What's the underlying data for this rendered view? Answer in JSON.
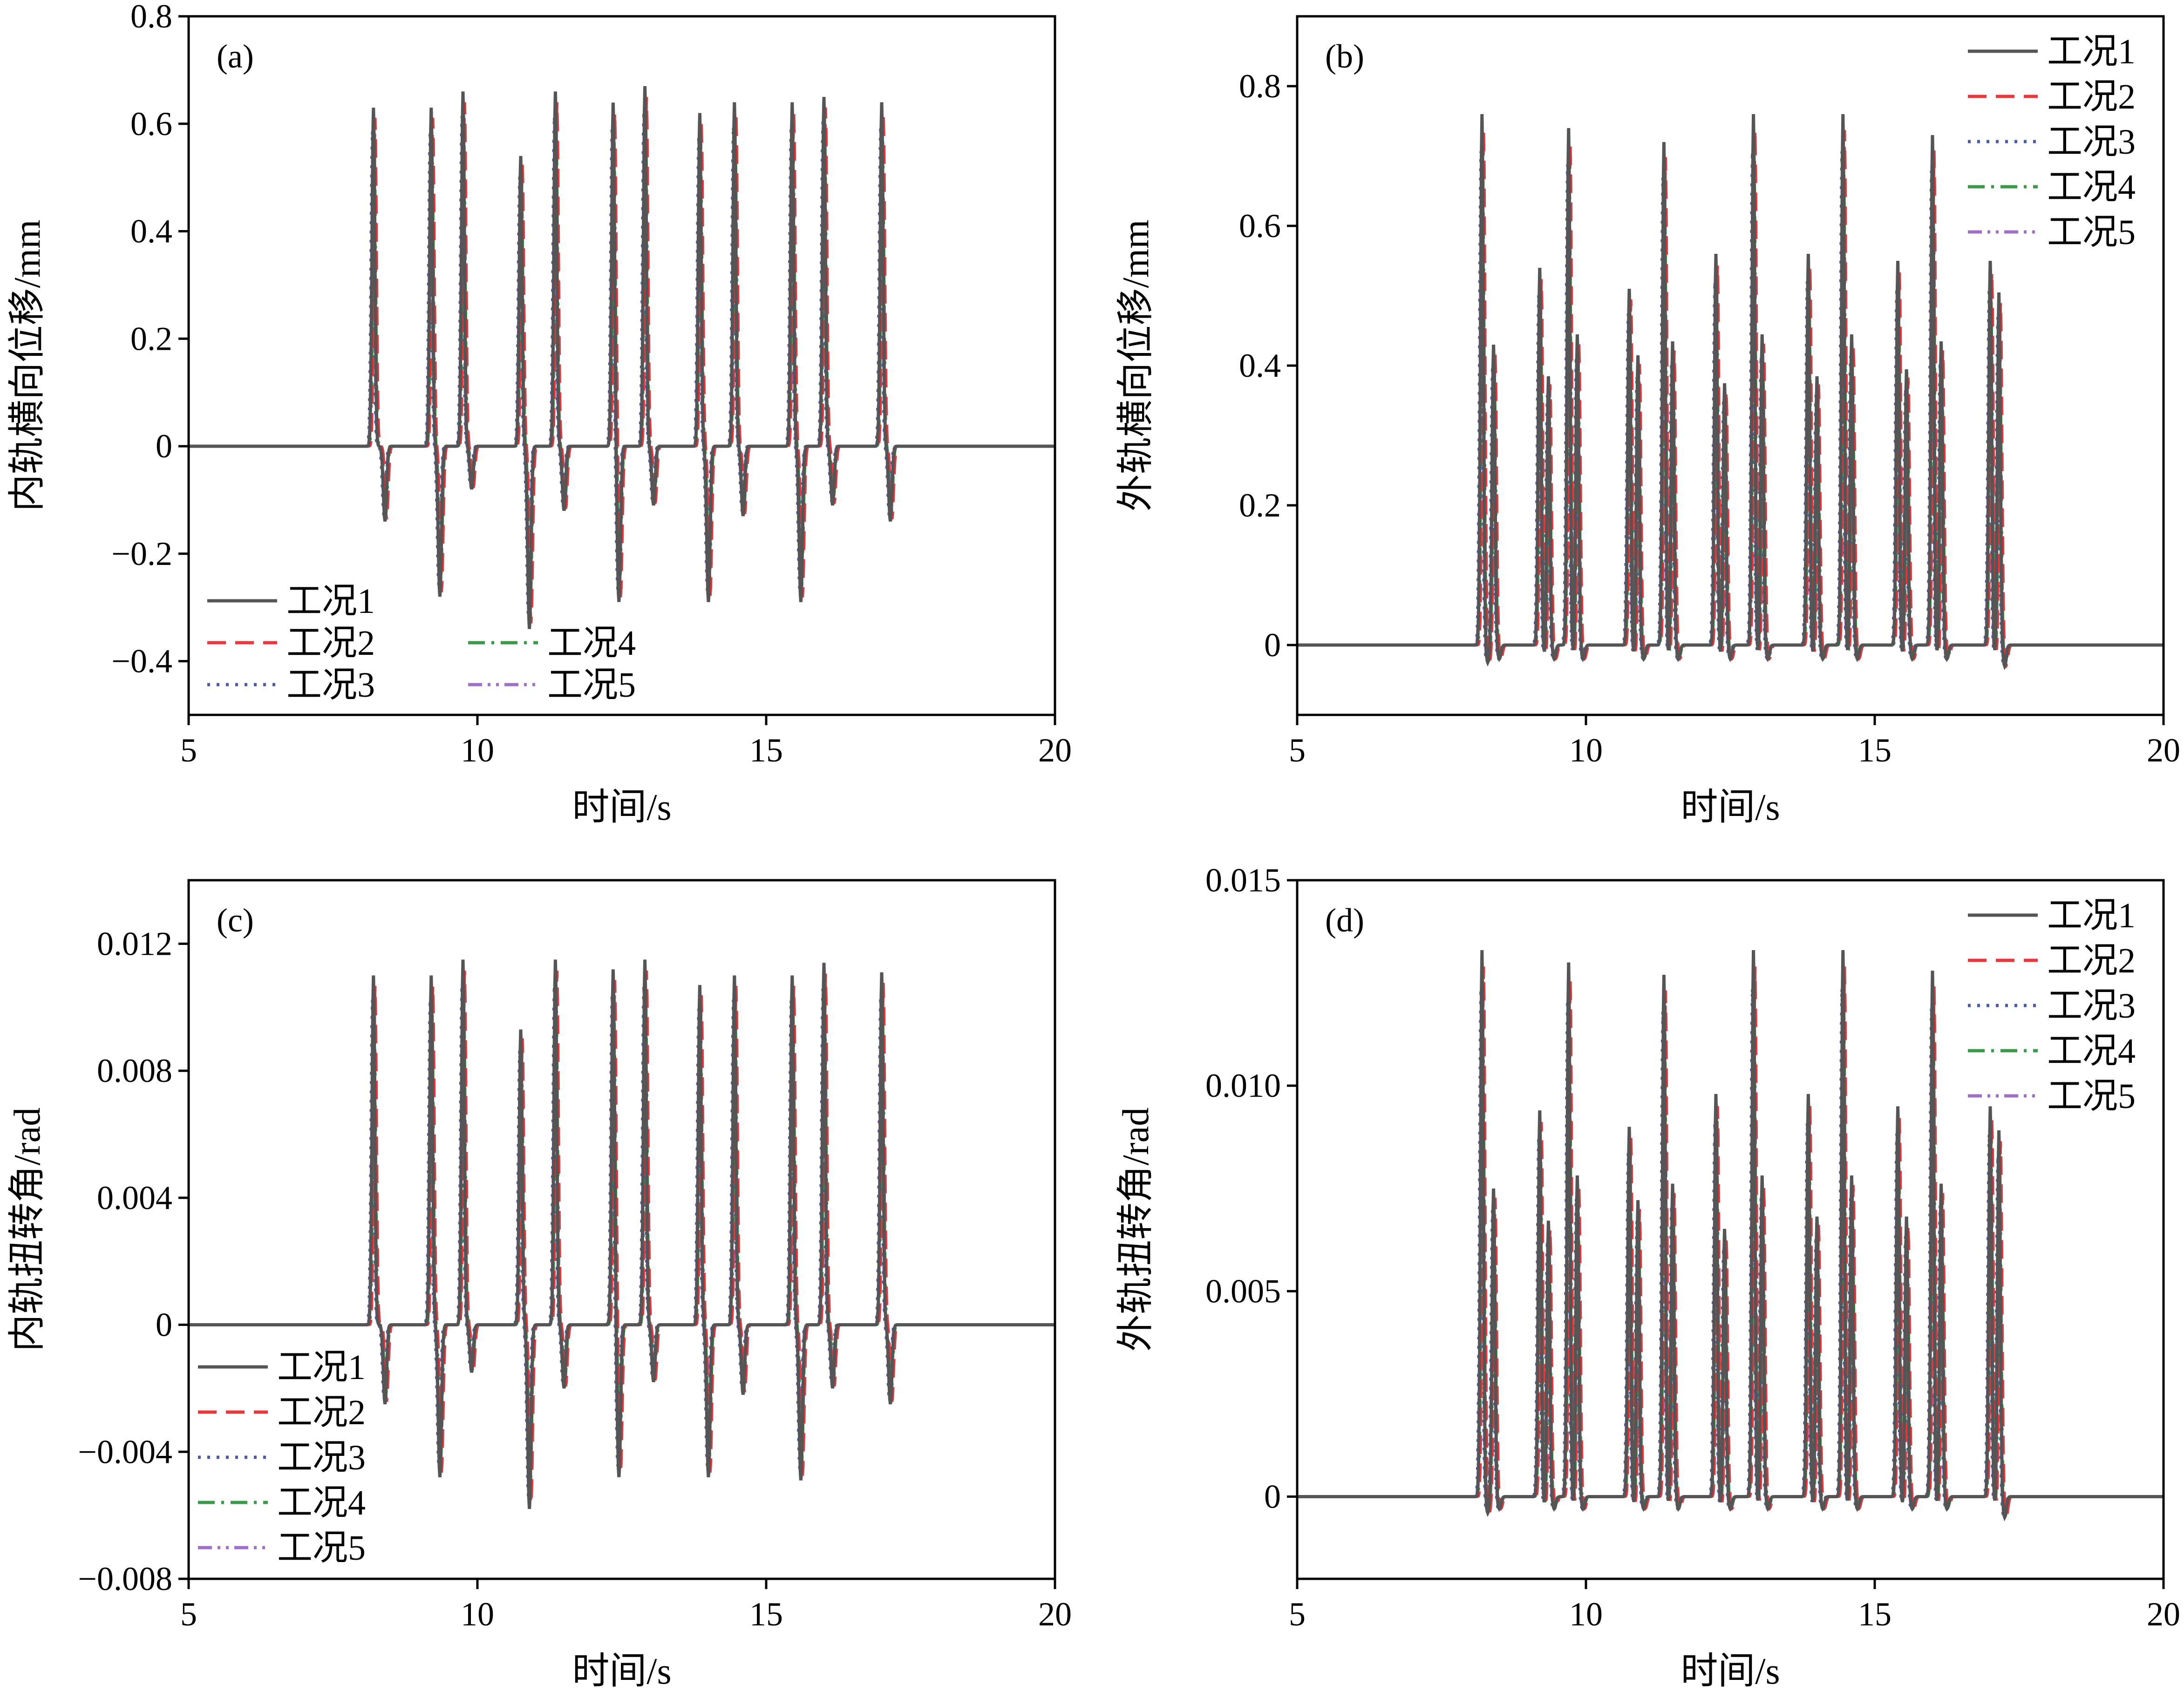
{
  "colors": {
    "工况1": "#555555",
    "工况2": "#e8383d",
    "工况3": "#4a5aa8",
    "工况4": "#3a9a4a",
    "工况5": "#a070c8"
  },
  "chart_data": [
    {
      "id": "a",
      "type": "line",
      "panel_label": "(a)",
      "xlabel": "时间/s",
      "ylabel": "内轨横向位移/mm",
      "xlim": [
        5,
        20
      ],
      "ylim": [
        -0.5,
        0.8
      ],
      "xticks": [
        5,
        10,
        15,
        20
      ],
      "xtick_labels": [
        "5",
        "10",
        "15",
        "20"
      ],
      "yticks": [
        -0.4,
        -0.2,
        0,
        0.2,
        0.4,
        0.6,
        0.8
      ],
      "ytick_labels": [
        "−0.4",
        "−0.2",
        "0",
        "0.2",
        "0.4",
        "0.6",
        "0.8"
      ],
      "legend_position": "bottom-left",
      "legend": [
        "工况1",
        "工况2",
        "工况3",
        "工况4",
        "工况5"
      ],
      "series": [
        {
          "name": "工况1",
          "style": "solid"
        },
        {
          "name": "工况2",
          "style": "dashed"
        },
        {
          "name": "工况3",
          "style": "dotted"
        },
        {
          "name": "工况4",
          "style": "dashdot"
        },
        {
          "name": "工况5",
          "style": "dashdotdot"
        }
      ],
      "peaks": [
        {
          "t": 8.2,
          "v": 0.63,
          "neg_t": 8.4,
          "neg_v": -0.14
        },
        {
          "t": 9.2,
          "v": 0.63,
          "neg_t": 9.35,
          "neg_v": -0.28
        },
        {
          "t": 9.75,
          "v": 0.66,
          "neg_t": 9.9,
          "neg_v": -0.08
        },
        {
          "t": 10.75,
          "v": 0.54,
          "neg_t": 10.9,
          "neg_v": -0.34
        },
        {
          "t": 11.35,
          "v": 0.66,
          "neg_t": 11.5,
          "neg_v": -0.12
        },
        {
          "t": 12.35,
          "v": 0.64,
          "neg_t": 12.45,
          "neg_v": -0.29
        },
        {
          "t": 12.9,
          "v": 0.67,
          "neg_t": 13.05,
          "neg_v": -0.11
        },
        {
          "t": 13.85,
          "v": 0.62,
          "neg_t": 14.0,
          "neg_v": -0.29
        },
        {
          "t": 14.45,
          "v": 0.64,
          "neg_t": 14.6,
          "neg_v": -0.13
        },
        {
          "t": 15.45,
          "v": 0.64,
          "neg_t": 15.6,
          "neg_v": -0.29
        },
        {
          "t": 16.0,
          "v": 0.65,
          "neg_t": 16.15,
          "neg_v": -0.11
        },
        {
          "t": 17.0,
          "v": 0.64,
          "neg_t": 17.15,
          "neg_v": -0.14
        }
      ]
    },
    {
      "id": "b",
      "type": "line",
      "panel_label": "(b)",
      "xlabel": "时间/s",
      "ylabel": "外轨横向位移/mm",
      "xlim": [
        5,
        20
      ],
      "ylim": [
        -0.1,
        0.9
      ],
      "xticks": [
        5,
        10,
        15,
        20
      ],
      "xtick_labels": [
        "5",
        "10",
        "15",
        "20"
      ],
      "yticks": [
        0,
        0.2,
        0.4,
        0.6,
        0.8
      ],
      "ytick_labels": [
        "0",
        "0.2",
        "0.4",
        "0.6",
        "0.8"
      ],
      "legend_position": "top-right",
      "legend": [
        "工况1",
        "工况2",
        "工况3",
        "工况4",
        "工况5"
      ],
      "series": [
        {
          "name": "工况1",
          "style": "solid"
        },
        {
          "name": "工况2",
          "style": "dashed"
        },
        {
          "name": "工况3",
          "style": "dotted"
        },
        {
          "name": "工况4",
          "style": "dashdot"
        },
        {
          "name": "工况5",
          "style": "dashdotdot"
        }
      ],
      "peaks": [
        {
          "t": 8.2,
          "v": 0.76,
          "neg_t": 8.3,
          "neg_v": -0.025
        },
        {
          "t": 8.4,
          "v": 0.43,
          "neg_t": 8.5,
          "neg_v": -0.02
        },
        {
          "t": 9.2,
          "v": 0.54,
          "neg_t": 9.3,
          "neg_v": -0.025
        },
        {
          "t": 9.35,
          "v": 0.39,
          "neg_t": 9.45,
          "neg_v": -0.02
        },
        {
          "t": 9.7,
          "v": 0.74,
          "neg_t": 9.8,
          "neg_v": -0.025
        },
        {
          "t": 9.85,
          "v": 0.45,
          "neg_t": 9.95,
          "neg_v": -0.02
        },
        {
          "t": 10.75,
          "v": 0.51,
          "neg_t": 10.85,
          "neg_v": -0.025
        },
        {
          "t": 10.9,
          "v": 0.42,
          "neg_t": 11.0,
          "neg_v": -0.02
        },
        {
          "t": 11.35,
          "v": 0.72,
          "neg_t": 11.45,
          "neg_v": -0.025
        },
        {
          "t": 11.5,
          "v": 0.44,
          "neg_t": 11.6,
          "neg_v": -0.02
        },
        {
          "t": 12.25,
          "v": 0.56,
          "neg_t": 12.35,
          "neg_v": -0.025
        },
        {
          "t": 12.4,
          "v": 0.38,
          "neg_t": 12.5,
          "neg_v": -0.02
        },
        {
          "t": 12.9,
          "v": 0.76,
          "neg_t": 13.0,
          "neg_v": -0.025
        },
        {
          "t": 13.05,
          "v": 0.45,
          "neg_t": 13.15,
          "neg_v": -0.02
        },
        {
          "t": 13.85,
          "v": 0.56,
          "neg_t": 13.95,
          "neg_v": -0.025
        },
        {
          "t": 14.0,
          "v": 0.39,
          "neg_t": 14.1,
          "neg_v": -0.02
        },
        {
          "t": 14.45,
          "v": 0.76,
          "neg_t": 14.55,
          "neg_v": -0.025
        },
        {
          "t": 14.6,
          "v": 0.45,
          "neg_t": 14.7,
          "neg_v": -0.02
        },
        {
          "t": 15.4,
          "v": 0.55,
          "neg_t": 15.5,
          "neg_v": -0.025
        },
        {
          "t": 15.55,
          "v": 0.4,
          "neg_t": 15.65,
          "neg_v": -0.02
        },
        {
          "t": 16.0,
          "v": 0.73,
          "neg_t": 16.1,
          "neg_v": -0.025
        },
        {
          "t": 16.15,
          "v": 0.44,
          "neg_t": 16.25,
          "neg_v": -0.02
        },
        {
          "t": 17.0,
          "v": 0.55,
          "neg_t": 17.1,
          "neg_v": -0.025
        },
        {
          "t": 17.15,
          "v": 0.51,
          "neg_t": 17.25,
          "neg_v": -0.03
        }
      ]
    },
    {
      "id": "c",
      "type": "line",
      "panel_label": "(c)",
      "xlabel": "时间/s",
      "ylabel": "内轨扭转角/rad",
      "xlim": [
        5,
        20
      ],
      "ylim": [
        -0.008,
        0.014
      ],
      "xticks": [
        5,
        10,
        15,
        20
      ],
      "xtick_labels": [
        "5",
        "10",
        "15",
        "20"
      ],
      "yticks": [
        -0.008,
        -0.004,
        0,
        0.004,
        0.008,
        0.012
      ],
      "ytick_labels": [
        "−0.008",
        "−0.004",
        "0",
        "0.004",
        "0.008",
        "0.012"
      ],
      "legend_position": "bottom-left",
      "legend": [
        "工况1",
        "工况2",
        "工况3",
        "工况4",
        "工况5"
      ],
      "series": [
        {
          "name": "工况1",
          "style": "solid"
        },
        {
          "name": "工况2",
          "style": "dashed"
        },
        {
          "name": "工况3",
          "style": "dotted"
        },
        {
          "name": "工况4",
          "style": "dashdot"
        },
        {
          "name": "工况5",
          "style": "dashdotdot"
        }
      ],
      "peaks": [
        {
          "t": 8.2,
          "v": 0.011,
          "neg_t": 8.4,
          "neg_v": -0.0025
        },
        {
          "t": 9.2,
          "v": 0.011,
          "neg_t": 9.35,
          "neg_v": -0.0048
        },
        {
          "t": 9.75,
          "v": 0.0115,
          "neg_t": 9.9,
          "neg_v": -0.0015
        },
        {
          "t": 10.75,
          "v": 0.0093,
          "neg_t": 10.9,
          "neg_v": -0.0058
        },
        {
          "t": 11.35,
          "v": 0.0115,
          "neg_t": 11.5,
          "neg_v": -0.002
        },
        {
          "t": 12.35,
          "v": 0.0112,
          "neg_t": 12.45,
          "neg_v": -0.0048
        },
        {
          "t": 12.9,
          "v": 0.0115,
          "neg_t": 13.05,
          "neg_v": -0.0018
        },
        {
          "t": 13.85,
          "v": 0.0107,
          "neg_t": 14.0,
          "neg_v": -0.0048
        },
        {
          "t": 14.45,
          "v": 0.011,
          "neg_t": 14.6,
          "neg_v": -0.0022
        },
        {
          "t": 15.45,
          "v": 0.011,
          "neg_t": 15.6,
          "neg_v": -0.0049
        },
        {
          "t": 16.0,
          "v": 0.0114,
          "neg_t": 16.15,
          "neg_v": -0.002
        },
        {
          "t": 17.0,
          "v": 0.0111,
          "neg_t": 17.15,
          "neg_v": -0.0025
        }
      ]
    },
    {
      "id": "d",
      "type": "line",
      "panel_label": "(d)",
      "xlabel": "时间/s",
      "ylabel": "外轨扭转角/rad",
      "xlim": [
        5,
        20
      ],
      "ylim": [
        -0.002,
        0.015
      ],
      "xticks": [
        5,
        10,
        15,
        20
      ],
      "xtick_labels": [
        "5",
        "10",
        "15",
        "20"
      ],
      "yticks": [
        0,
        0.005,
        0.01,
        0.015
      ],
      "ytick_labels": [
        "0",
        "0.005",
        "0.010",
        "0.015"
      ],
      "legend_position": "top-right",
      "legend": [
        "工况1",
        "工况2",
        "工况3",
        "工况4",
        "工况5"
      ],
      "series": [
        {
          "name": "工况1",
          "style": "solid"
        },
        {
          "name": "工况2",
          "style": "dashed"
        },
        {
          "name": "工况3",
          "style": "dotted"
        },
        {
          "name": "工况4",
          "style": "dashdot"
        },
        {
          "name": "工况5",
          "style": "dashdotdot"
        }
      ],
      "peaks": [
        {
          "t": 8.2,
          "v": 0.0133,
          "neg_t": 8.3,
          "neg_v": -0.0004
        },
        {
          "t": 8.4,
          "v": 0.0075,
          "neg_t": 8.5,
          "neg_v": -0.0003
        },
        {
          "t": 9.2,
          "v": 0.0094,
          "neg_t": 9.3,
          "neg_v": -0.0004
        },
        {
          "t": 9.35,
          "v": 0.0068,
          "neg_t": 9.45,
          "neg_v": -0.0003
        },
        {
          "t": 9.7,
          "v": 0.013,
          "neg_t": 9.8,
          "neg_v": -0.0004
        },
        {
          "t": 9.85,
          "v": 0.0079,
          "neg_t": 9.95,
          "neg_v": -0.0003
        },
        {
          "t": 10.75,
          "v": 0.009,
          "neg_t": 10.85,
          "neg_v": -0.0004
        },
        {
          "t": 10.9,
          "v": 0.0073,
          "neg_t": 11.0,
          "neg_v": -0.0003
        },
        {
          "t": 11.35,
          "v": 0.0127,
          "neg_t": 11.45,
          "neg_v": -0.0004
        },
        {
          "t": 11.5,
          "v": 0.0077,
          "neg_t": 11.6,
          "neg_v": -0.0003
        },
        {
          "t": 12.25,
          "v": 0.0098,
          "neg_t": 12.35,
          "neg_v": -0.0004
        },
        {
          "t": 12.4,
          "v": 0.0066,
          "neg_t": 12.5,
          "neg_v": -0.0003
        },
        {
          "t": 12.9,
          "v": 0.0133,
          "neg_t": 13.0,
          "neg_v": -0.0004
        },
        {
          "t": 13.05,
          "v": 0.0079,
          "neg_t": 13.15,
          "neg_v": -0.0003
        },
        {
          "t": 13.85,
          "v": 0.0098,
          "neg_t": 13.95,
          "neg_v": -0.0004
        },
        {
          "t": 14.0,
          "v": 0.0069,
          "neg_t": 14.1,
          "neg_v": -0.0003
        },
        {
          "t": 14.45,
          "v": 0.0133,
          "neg_t": 14.55,
          "neg_v": -0.0004
        },
        {
          "t": 14.6,
          "v": 0.0079,
          "neg_t": 14.7,
          "neg_v": -0.0003
        },
        {
          "t": 15.4,
          "v": 0.0095,
          "neg_t": 15.5,
          "neg_v": -0.0004
        },
        {
          "t": 15.55,
          "v": 0.0069,
          "neg_t": 15.65,
          "neg_v": -0.0003
        },
        {
          "t": 16.0,
          "v": 0.0128,
          "neg_t": 16.1,
          "neg_v": -0.0004
        },
        {
          "t": 16.15,
          "v": 0.0077,
          "neg_t": 16.25,
          "neg_v": -0.0003
        },
        {
          "t": 17.0,
          "v": 0.0095,
          "neg_t": 17.1,
          "neg_v": -0.0004
        },
        {
          "t": 17.15,
          "v": 0.009,
          "neg_t": 17.25,
          "neg_v": -0.0005
        }
      ]
    }
  ]
}
